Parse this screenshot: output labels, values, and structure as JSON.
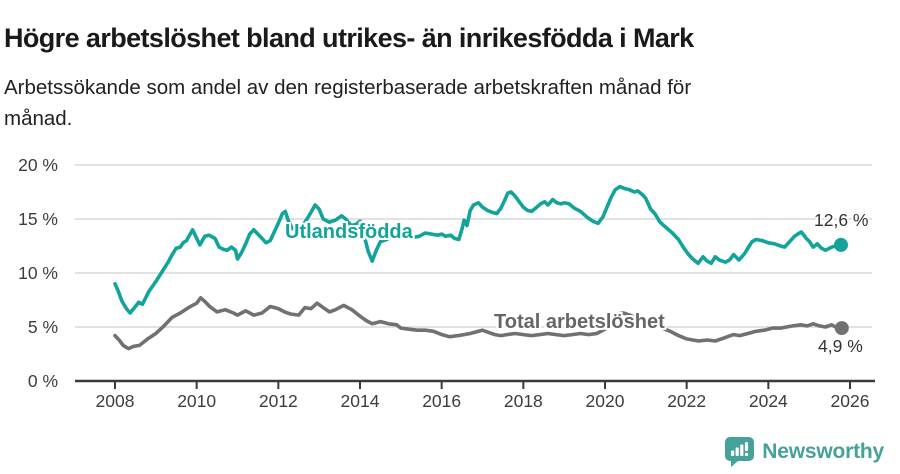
{
  "header": {
    "title": "Högre arbetslöshet bland utrikes- än inrikesfödda i Mark",
    "subtitle_line1": "Arbetssökande som andel av den registerbaserade arbetskraften månad för",
    "subtitle_line2": "månad."
  },
  "chart_data": {
    "type": "line",
    "title": "Högre arbetslöshet bland utrikes- än inrikesfödda i Mark",
    "subtitle": "Arbetssökande som andel av den registerbaserade arbetskraften månad för månad.",
    "unit": "%",
    "grid": true,
    "legend_position": "inline-labels",
    "ylim": [
      0,
      20
    ],
    "xlim": [
      2007.9,
      2026.6
    ],
    "y_ticks": [
      {
        "value": 0,
        "label": "0 %"
      },
      {
        "value": 5,
        "label": "5 %"
      },
      {
        "value": 10,
        "label": "10 %"
      },
      {
        "value": 15,
        "label": "15 %"
      },
      {
        "value": 20,
        "label": "20 %"
      }
    ],
    "x_ticks": [
      2008,
      2010,
      2012,
      2014,
      2016,
      2018,
      2020,
      2022,
      2024,
      2026
    ],
    "series": [
      {
        "name": "Utlandsfödda",
        "color": "#12a49a",
        "end_label": "12,6 %",
        "last_value": 12.6,
        "points": [
          [
            2008.0,
            9.0
          ],
          [
            2008.08,
            8.3
          ],
          [
            2008.17,
            7.4
          ],
          [
            2008.28,
            6.7
          ],
          [
            2008.37,
            6.3
          ],
          [
            2008.5,
            6.9
          ],
          [
            2008.58,
            7.3
          ],
          [
            2008.67,
            7.1
          ],
          [
            2008.83,
            8.3
          ],
          [
            2009.0,
            9.2
          ],
          [
            2009.15,
            10.1
          ],
          [
            2009.3,
            11.0
          ],
          [
            2009.4,
            11.7
          ],
          [
            2009.5,
            12.3
          ],
          [
            2009.6,
            12.4
          ],
          [
            2009.67,
            12.8
          ],
          [
            2009.75,
            13.0
          ],
          [
            2009.9,
            14.0
          ],
          [
            2010.0,
            13.2
          ],
          [
            2010.08,
            12.6
          ],
          [
            2010.2,
            13.4
          ],
          [
            2010.3,
            13.5
          ],
          [
            2010.45,
            13.2
          ],
          [
            2010.55,
            12.4
          ],
          [
            2010.65,
            12.2
          ],
          [
            2010.75,
            12.1
          ],
          [
            2010.85,
            12.4
          ],
          [
            2010.95,
            12.1
          ],
          [
            2011.0,
            11.3
          ],
          [
            2011.1,
            11.9
          ],
          [
            2011.2,
            12.7
          ],
          [
            2011.3,
            13.6
          ],
          [
            2011.4,
            14.0
          ],
          [
            2011.5,
            13.6
          ],
          [
            2011.6,
            13.2
          ],
          [
            2011.7,
            12.8
          ],
          [
            2011.8,
            13.0
          ],
          [
            2011.9,
            13.8
          ],
          [
            2012.0,
            14.6
          ],
          [
            2012.1,
            15.5
          ],
          [
            2012.17,
            15.7
          ],
          [
            2012.25,
            14.8
          ],
          [
            2012.35,
            14.1
          ],
          [
            2012.45,
            14.0
          ],
          [
            2012.6,
            14.4
          ],
          [
            2012.75,
            15.3
          ],
          [
            2012.9,
            16.3
          ],
          [
            2013.0,
            15.9
          ],
          [
            2013.1,
            15.0
          ],
          [
            2013.25,
            14.7
          ],
          [
            2013.4,
            14.9
          ],
          [
            2013.55,
            15.3
          ],
          [
            2013.65,
            15.0
          ],
          [
            2013.78,
            14.4
          ],
          [
            2013.9,
            14.5
          ],
          [
            2014.0,
            14.8
          ],
          [
            2014.1,
            13.5
          ],
          [
            2014.2,
            12.0
          ],
          [
            2014.3,
            11.1
          ],
          [
            2014.4,
            12.1
          ],
          [
            2014.5,
            12.9
          ],
          [
            2014.65,
            13.1
          ],
          [
            2014.8,
            13.4
          ],
          [
            2015.0,
            13.8
          ],
          [
            2015.15,
            13.5
          ],
          [
            2015.3,
            13.3
          ],
          [
            2015.45,
            13.4
          ],
          [
            2015.6,
            13.7
          ],
          [
            2015.75,
            13.6
          ],
          [
            2015.9,
            13.5
          ],
          [
            2016.0,
            13.6
          ],
          [
            2016.1,
            13.4
          ],
          [
            2016.22,
            13.5
          ],
          [
            2016.32,
            13.2
          ],
          [
            2016.42,
            13.1
          ],
          [
            2016.5,
            14.1
          ],
          [
            2016.55,
            14.9
          ],
          [
            2016.62,
            14.4
          ],
          [
            2016.7,
            15.8
          ],
          [
            2016.78,
            16.3
          ],
          [
            2016.9,
            16.5
          ],
          [
            2017.0,
            16.1
          ],
          [
            2017.12,
            15.8
          ],
          [
            2017.25,
            15.6
          ],
          [
            2017.35,
            15.5
          ],
          [
            2017.45,
            16.0
          ],
          [
            2017.55,
            16.8
          ],
          [
            2017.62,
            17.4
          ],
          [
            2017.7,
            17.5
          ],
          [
            2017.8,
            17.1
          ],
          [
            2017.9,
            16.6
          ],
          [
            2018.0,
            16.1
          ],
          [
            2018.1,
            15.8
          ],
          [
            2018.2,
            15.7
          ],
          [
            2018.3,
            16.0
          ],
          [
            2018.42,
            16.4
          ],
          [
            2018.52,
            16.6
          ],
          [
            2018.6,
            16.3
          ],
          [
            2018.72,
            16.8
          ],
          [
            2018.82,
            16.5
          ],
          [
            2018.92,
            16.4
          ],
          [
            2019.0,
            16.5
          ],
          [
            2019.12,
            16.4
          ],
          [
            2019.25,
            16.0
          ],
          [
            2019.4,
            15.7
          ],
          [
            2019.55,
            15.2
          ],
          [
            2019.7,
            14.8
          ],
          [
            2019.83,
            14.6
          ],
          [
            2019.95,
            15.2
          ],
          [
            2020.05,
            16.1
          ],
          [
            2020.15,
            17.0
          ],
          [
            2020.25,
            17.7
          ],
          [
            2020.36,
            18.0
          ],
          [
            2020.5,
            17.8
          ],
          [
            2020.6,
            17.7
          ],
          [
            2020.72,
            17.5
          ],
          [
            2020.8,
            17.6
          ],
          [
            2020.93,
            17.2
          ],
          [
            2021.0,
            16.9
          ],
          [
            2021.12,
            15.9
          ],
          [
            2021.22,
            15.5
          ],
          [
            2021.35,
            14.7
          ],
          [
            2021.5,
            14.2
          ],
          [
            2021.65,
            13.7
          ],
          [
            2021.8,
            13.1
          ],
          [
            2021.95,
            12.2
          ],
          [
            2022.05,
            11.7
          ],
          [
            2022.15,
            11.3
          ],
          [
            2022.28,
            10.9
          ],
          [
            2022.4,
            11.5
          ],
          [
            2022.5,
            11.1
          ],
          [
            2022.6,
            10.9
          ],
          [
            2022.7,
            11.5
          ],
          [
            2022.8,
            11.2
          ],
          [
            2022.95,
            11.0
          ],
          [
            2023.05,
            11.2
          ],
          [
            2023.15,
            11.7
          ],
          [
            2023.28,
            11.2
          ],
          [
            2023.42,
            11.8
          ],
          [
            2023.5,
            12.3
          ],
          [
            2023.6,
            12.9
          ],
          [
            2023.7,
            13.1
          ],
          [
            2023.85,
            13.0
          ],
          [
            2024.0,
            12.8
          ],
          [
            2024.15,
            12.7
          ],
          [
            2024.3,
            12.5
          ],
          [
            2024.4,
            12.4
          ],
          [
            2024.52,
            12.9
          ],
          [
            2024.64,
            13.4
          ],
          [
            2024.72,
            13.6
          ],
          [
            2024.81,
            13.8
          ],
          [
            2024.93,
            13.2
          ],
          [
            2025.01,
            12.9
          ],
          [
            2025.1,
            12.4
          ],
          [
            2025.2,
            12.7
          ],
          [
            2025.3,
            12.3
          ],
          [
            2025.4,
            12.1
          ],
          [
            2025.55,
            12.4
          ],
          [
            2025.65,
            12.5
          ],
          [
            2025.78,
            12.6
          ]
        ]
      },
      {
        "name": "Total arbetslöshet",
        "color": "#717171",
        "end_label": "4,9 %",
        "last_value": 4.9,
        "points": [
          [
            2008.0,
            4.2
          ],
          [
            2008.1,
            3.8
          ],
          [
            2008.2,
            3.3
          ],
          [
            2008.33,
            3.0
          ],
          [
            2008.45,
            3.2
          ],
          [
            2008.6,
            3.3
          ],
          [
            2008.8,
            3.9
          ],
          [
            2009.0,
            4.4
          ],
          [
            2009.2,
            5.1
          ],
          [
            2009.4,
            5.9
          ],
          [
            2009.6,
            6.3
          ],
          [
            2009.8,
            6.8
          ],
          [
            2010.0,
            7.2
          ],
          [
            2010.1,
            7.7
          ],
          [
            2010.22,
            7.3
          ],
          [
            2010.32,
            6.9
          ],
          [
            2010.5,
            6.4
          ],
          [
            2010.7,
            6.6
          ],
          [
            2010.9,
            6.3
          ],
          [
            2011.0,
            6.1
          ],
          [
            2011.2,
            6.5
          ],
          [
            2011.4,
            6.1
          ],
          [
            2011.6,
            6.3
          ],
          [
            2011.8,
            6.9
          ],
          [
            2012.0,
            6.7
          ],
          [
            2012.15,
            6.4
          ],
          [
            2012.3,
            6.2
          ],
          [
            2012.5,
            6.1
          ],
          [
            2012.65,
            6.8
          ],
          [
            2012.8,
            6.7
          ],
          [
            2012.95,
            7.2
          ],
          [
            2013.1,
            6.8
          ],
          [
            2013.25,
            6.4
          ],
          [
            2013.4,
            6.6
          ],
          [
            2013.6,
            7.0
          ],
          [
            2013.8,
            6.6
          ],
          [
            2014.0,
            6.0
          ],
          [
            2014.15,
            5.6
          ],
          [
            2014.3,
            5.3
          ],
          [
            2014.5,
            5.5
          ],
          [
            2014.7,
            5.3
          ],
          [
            2014.9,
            5.2
          ],
          [
            2015.0,
            4.9
          ],
          [
            2015.2,
            4.8
          ],
          [
            2015.4,
            4.7
          ],
          [
            2015.6,
            4.7
          ],
          [
            2015.8,
            4.6
          ],
          [
            2016.0,
            4.3
          ],
          [
            2016.2,
            4.1
          ],
          [
            2016.4,
            4.2
          ],
          [
            2016.55,
            4.3
          ],
          [
            2016.7,
            4.4
          ],
          [
            2016.9,
            4.6
          ],
          [
            2017.0,
            4.7
          ],
          [
            2017.15,
            4.5
          ],
          [
            2017.3,
            4.3
          ],
          [
            2017.45,
            4.2
          ],
          [
            2017.6,
            4.3
          ],
          [
            2017.8,
            4.4
          ],
          [
            2018.0,
            4.3
          ],
          [
            2018.2,
            4.2
          ],
          [
            2018.4,
            4.3
          ],
          [
            2018.6,
            4.4
          ],
          [
            2018.8,
            4.3
          ],
          [
            2019.0,
            4.2
          ],
          [
            2019.2,
            4.3
          ],
          [
            2019.4,
            4.4
          ],
          [
            2019.6,
            4.3
          ],
          [
            2019.8,
            4.4
          ],
          [
            2020.0,
            4.8
          ],
          [
            2020.15,
            5.6
          ],
          [
            2020.3,
            6.2
          ],
          [
            2020.45,
            6.3
          ],
          [
            2020.6,
            6.1
          ],
          [
            2020.8,
            5.8
          ],
          [
            2021.0,
            5.5
          ],
          [
            2021.2,
            5.2
          ],
          [
            2021.4,
            4.9
          ],
          [
            2021.6,
            4.6
          ],
          [
            2021.8,
            4.2
          ],
          [
            2022.0,
            3.9
          ],
          [
            2022.15,
            3.8
          ],
          [
            2022.3,
            3.7
          ],
          [
            2022.5,
            3.8
          ],
          [
            2022.7,
            3.7
          ],
          [
            2022.85,
            3.9
          ],
          [
            2023.0,
            4.1
          ],
          [
            2023.15,
            4.3
          ],
          [
            2023.3,
            4.2
          ],
          [
            2023.5,
            4.4
          ],
          [
            2023.7,
            4.6
          ],
          [
            2023.9,
            4.7
          ],
          [
            2024.1,
            4.9
          ],
          [
            2024.3,
            4.9
          ],
          [
            2024.45,
            5.0
          ],
          [
            2024.6,
            5.1
          ],
          [
            2024.8,
            5.2
          ],
          [
            2024.95,
            5.1
          ],
          [
            2025.1,
            5.3
          ],
          [
            2025.25,
            5.1
          ],
          [
            2025.4,
            5.0
          ],
          [
            2025.55,
            5.2
          ],
          [
            2025.7,
            4.9
          ],
          [
            2025.8,
            4.9
          ]
        ]
      }
    ],
    "colors": {
      "grid": "#d9d9d9",
      "axis": "#3a3a3a",
      "tick_text": "#3d3d3d",
      "end_label_text": "#333333"
    }
  },
  "footer": {
    "brand": "Newsworthy",
    "brand_color": "#46a198"
  }
}
